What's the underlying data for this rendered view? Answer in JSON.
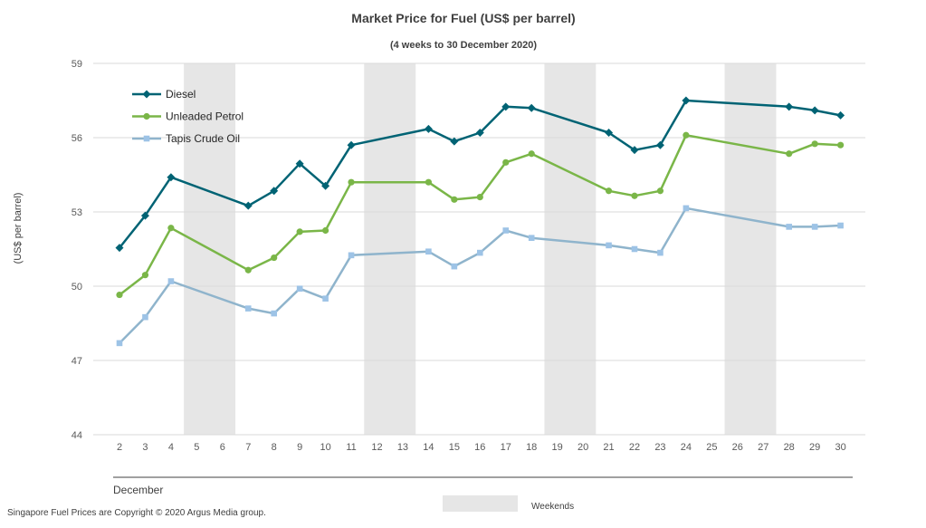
{
  "chart_data": {
    "type": "line",
    "title": "Market Price for Fuel (US$ per barrel)",
    "subtitle": "(4 weeks to 30 December 2020)",
    "ylabel": "(US$ per barrel)",
    "xlabel": "December",
    "ylim": [
      44,
      59
    ],
    "yticks": [
      "44",
      "47",
      "50",
      "53",
      "56",
      "59"
    ],
    "categories": [
      "2",
      "3",
      "4",
      "5",
      "6",
      "7",
      "8",
      "9",
      "10",
      "11",
      "12",
      "13",
      "14",
      "15",
      "16",
      "17",
      "18",
      "19",
      "20",
      "21",
      "22",
      "23",
      "24",
      "25",
      "26",
      "27",
      "28",
      "29",
      "30"
    ],
    "weekend_ranges": [
      [
        "5",
        "6"
      ],
      [
        "12",
        "13"
      ],
      [
        "19",
        "20"
      ],
      [
        "26",
        "27"
      ]
    ],
    "weekend_legend_label": "Weekends",
    "legend_position": "top-left",
    "grid": true,
    "series": [
      {
        "name": "Diesel",
        "color": "#006374",
        "marker": "diamond",
        "x": [
          "2",
          "3",
          "4",
          "7",
          "8",
          "9",
          "10",
          "11",
          "14",
          "15",
          "16",
          "17",
          "18",
          "21",
          "22",
          "23",
          "24",
          "28",
          "29",
          "30"
        ],
        "values": [
          51.55,
          52.85,
          54.4,
          53.25,
          53.85,
          54.95,
          54.05,
          55.7,
          56.35,
          55.85,
          56.2,
          57.25,
          57.2,
          56.2,
          55.5,
          55.7,
          57.5,
          57.25,
          57.1,
          56.9
        ]
      },
      {
        "name": "Unleaded Petrol",
        "color": "#7ab648",
        "marker": "circle",
        "x": [
          "2",
          "3",
          "4",
          "7",
          "8",
          "9",
          "10",
          "11",
          "14",
          "15",
          "16",
          "17",
          "18",
          "21",
          "22",
          "23",
          "24",
          "28",
          "29",
          "30"
        ],
        "values": [
          49.65,
          50.45,
          52.35,
          50.65,
          51.15,
          52.2,
          52.25,
          54.2,
          54.2,
          53.5,
          53.6,
          55.0,
          55.35,
          53.85,
          53.65,
          53.85,
          56.1,
          55.35,
          55.75,
          55.7
        ]
      },
      {
        "name": "Tapis Crude Oil",
        "color": "#8fb4cc",
        "marker": "square",
        "marker_color": "#9dc3e6",
        "x": [
          "2",
          "3",
          "4",
          "7",
          "8",
          "9",
          "10",
          "11",
          "14",
          "15",
          "16",
          "17",
          "18",
          "21",
          "22",
          "23",
          "24",
          "28",
          "29",
          "30"
        ],
        "values": [
          47.7,
          48.75,
          50.2,
          49.1,
          48.9,
          49.9,
          49.5,
          51.25,
          51.4,
          50.8,
          51.35,
          52.25,
          51.95,
          51.65,
          51.5,
          51.35,
          53.15,
          52.4,
          52.4,
          52.45
        ]
      }
    ]
  },
  "footer": {
    "copyright": "Singapore  Fuel  Prices  are Copyright  © 2020  Argus Media  group."
  },
  "colors": {
    "weekend_fill": "#e6e6e6",
    "grid": "#d9d9d9",
    "axis": "#404040"
  }
}
